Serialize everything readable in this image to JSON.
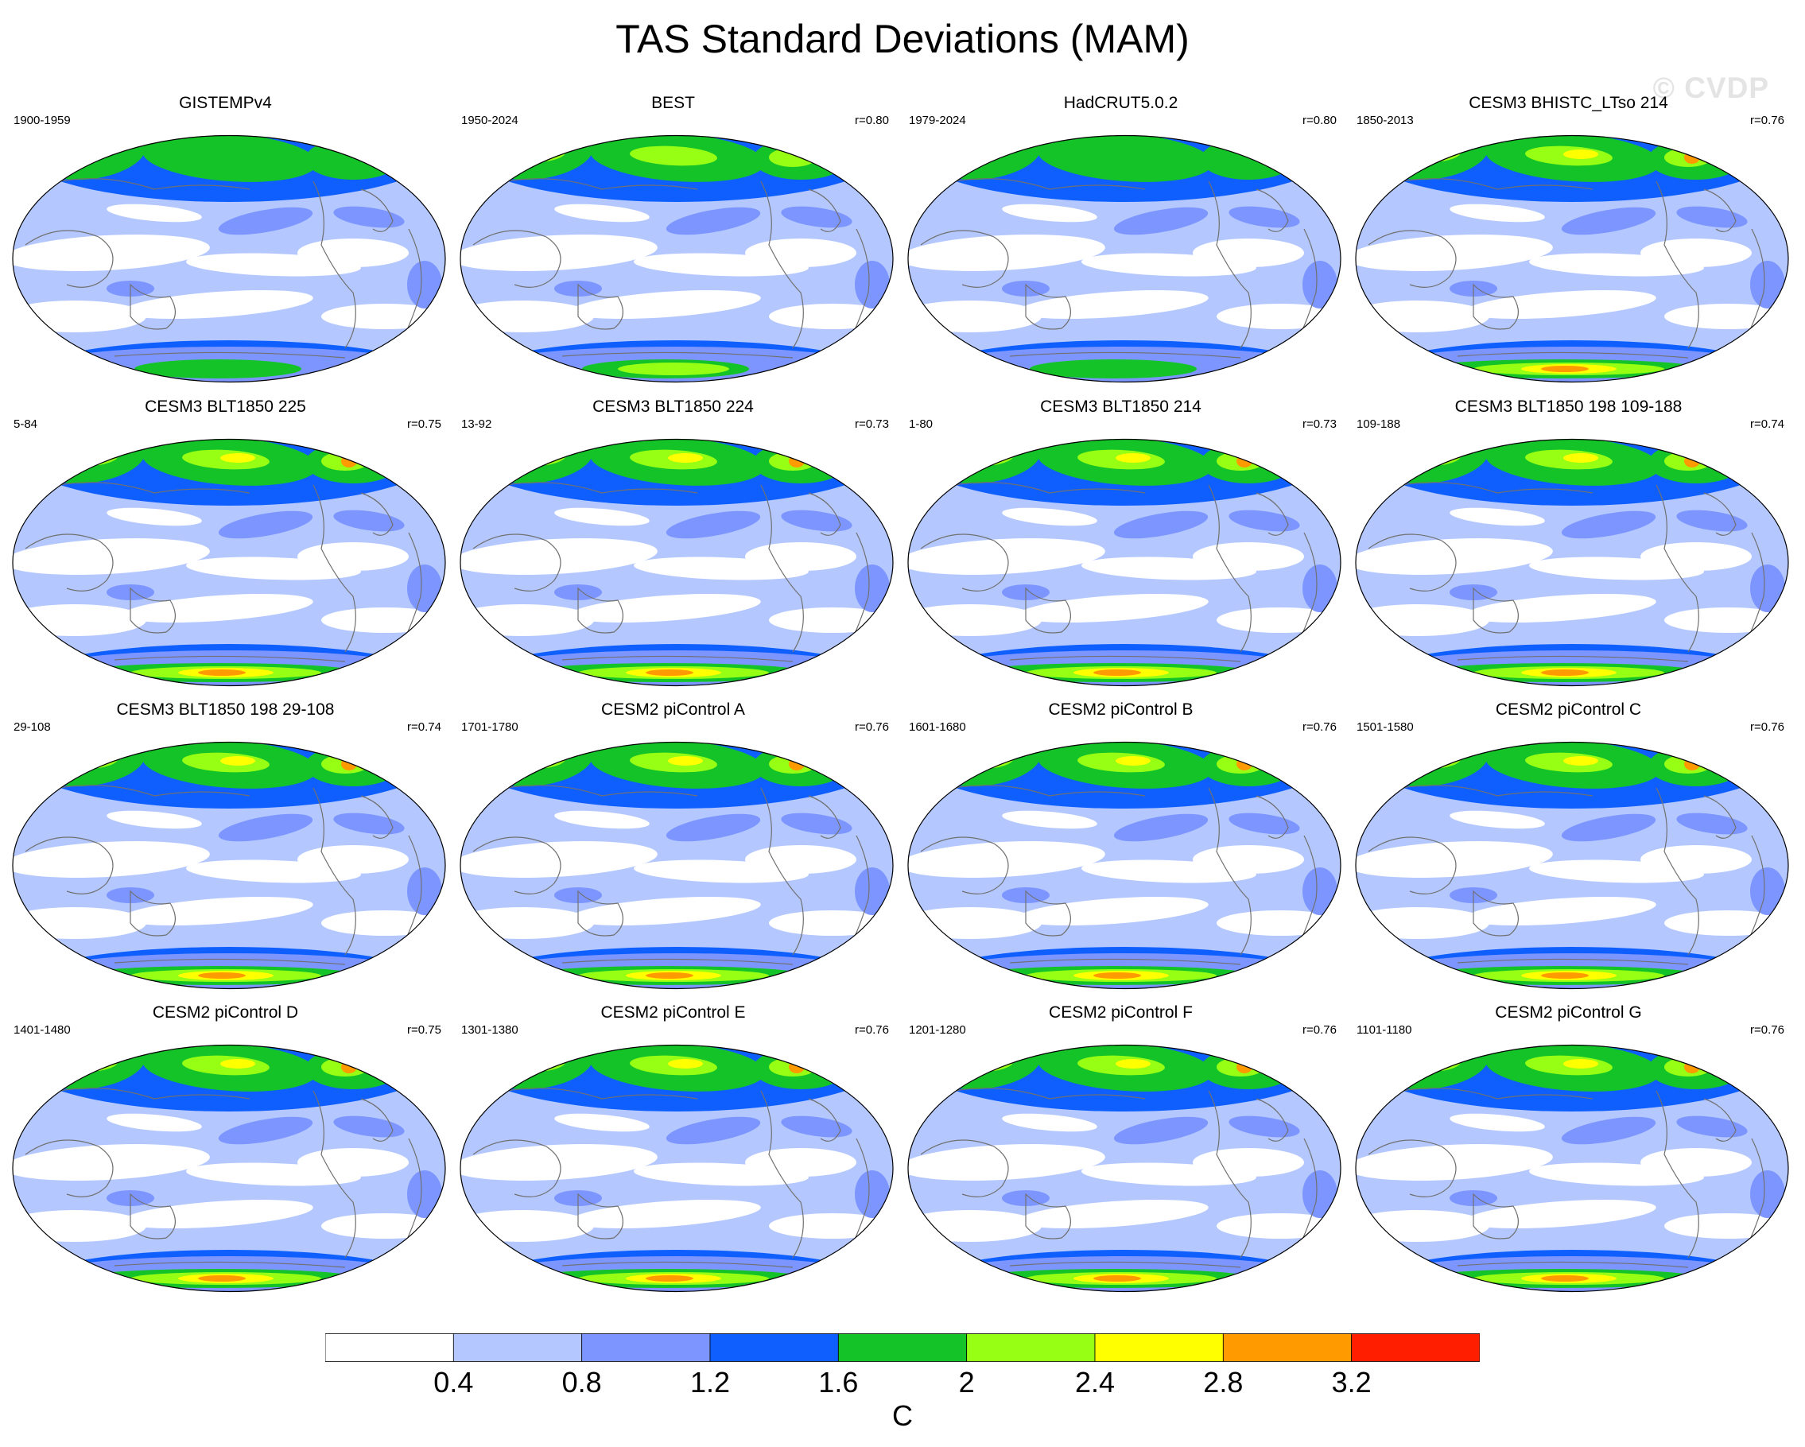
{
  "title": "TAS Standard Deviations (MAM)",
  "watermark": "© CVDP",
  "colorbar": {
    "units": "C",
    "labels": [
      "0.4",
      "0.8",
      "1.2",
      "1.6",
      "2",
      "2.4",
      "2.8",
      "3.2"
    ],
    "colors": [
      "#ffffff",
      "#b4c8ff",
      "#7d96ff",
      "#0f5fff",
      "#14c328",
      "#96ff14",
      "#ffff00",
      "#ff9b00",
      "#ff1e00"
    ]
  },
  "panels": [
    {
      "title": "GISTEMPv4",
      "years": "1900-1959",
      "corr": ""
    },
    {
      "title": "BEST",
      "years": "1950-2024",
      "corr": "r=0.80"
    },
    {
      "title": "HadCRUT5.0.2",
      "years": "1979-2024",
      "corr": "r=0.80"
    },
    {
      "title": "CESM3 BHISTC_LTso 214",
      "years": "1850-2013",
      "corr": "r=0.76"
    },
    {
      "title": "CESM3 BLT1850 225",
      "years": "5-84",
      "corr": "r=0.75"
    },
    {
      "title": "CESM3 BLT1850 224",
      "years": "13-92",
      "corr": "r=0.73"
    },
    {
      "title": "CESM3 BLT1850 214",
      "years": "1-80",
      "corr": "r=0.73"
    },
    {
      "title": "CESM3 BLT1850 198 109-188",
      "years": "109-188",
      "corr": "r=0.74"
    },
    {
      "title": "CESM3 BLT1850 198 29-108",
      "years": "29-108",
      "corr": "r=0.74"
    },
    {
      "title": "CESM2 piControl A",
      "years": "1701-1780",
      "corr": "r=0.76"
    },
    {
      "title": "CESM2 piControl B",
      "years": "1601-1680",
      "corr": "r=0.76"
    },
    {
      "title": "CESM2 piControl C",
      "years": "1501-1580",
      "corr": "r=0.76"
    },
    {
      "title": "CESM2 piControl D",
      "years": "1401-1480",
      "corr": "r=0.75"
    },
    {
      "title": "CESM2 piControl E",
      "years": "1301-1380",
      "corr": "r=0.76"
    },
    {
      "title": "CESM2 piControl F",
      "years": "1201-1280",
      "corr": "r=0.76"
    },
    {
      "title": "CESM2 piControl G",
      "years": "1101-1180",
      "corr": "r=0.76"
    }
  ]
}
